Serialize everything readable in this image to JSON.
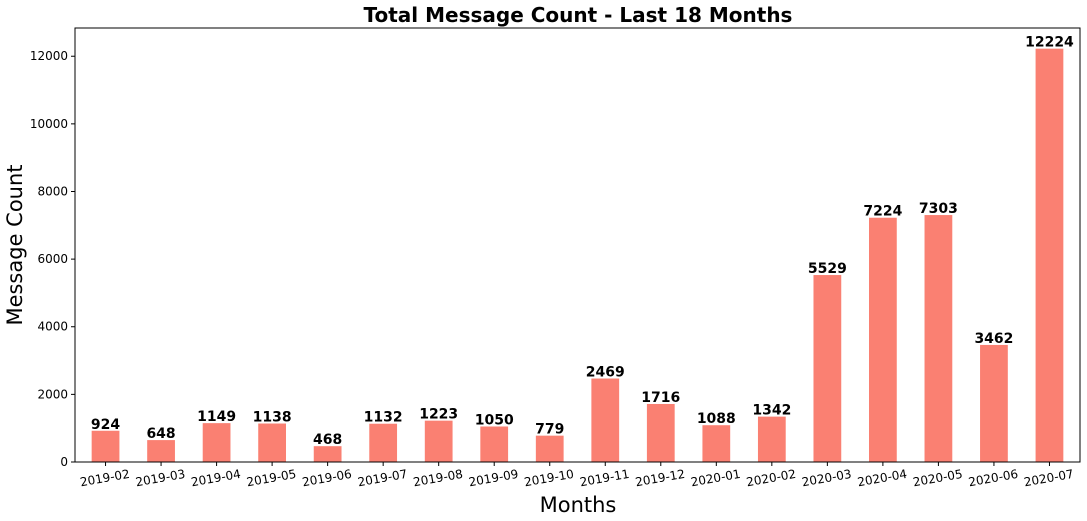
{
  "chart_data": {
    "type": "bar",
    "title": "Total Message Count - Last 18 Months",
    "xlabel": "Months",
    "ylabel": "Message Count",
    "categories": [
      "2019-02",
      "2019-03",
      "2019-04",
      "2019-05",
      "2019-06",
      "2019-07",
      "2019-08",
      "2019-09",
      "2019-10",
      "2019-11",
      "2019-12",
      "2020-01",
      "2020-02",
      "2020-03",
      "2020-04",
      "2020-05",
      "2020-06",
      "2020-07"
    ],
    "values": [
      924,
      648,
      1149,
      1138,
      468,
      1132,
      1223,
      1050,
      779,
      2469,
      1716,
      1088,
      1342,
      5529,
      7224,
      7303,
      3462,
      12224
    ],
    "ylim": [
      0,
      12835
    ],
    "yticks": [
      0,
      2000,
      4000,
      6000,
      8000,
      10000,
      12000
    ],
    "bar_color": "#fa8072",
    "grid": false,
    "legend": "none",
    "x_tick_rotation": "slight"
  }
}
